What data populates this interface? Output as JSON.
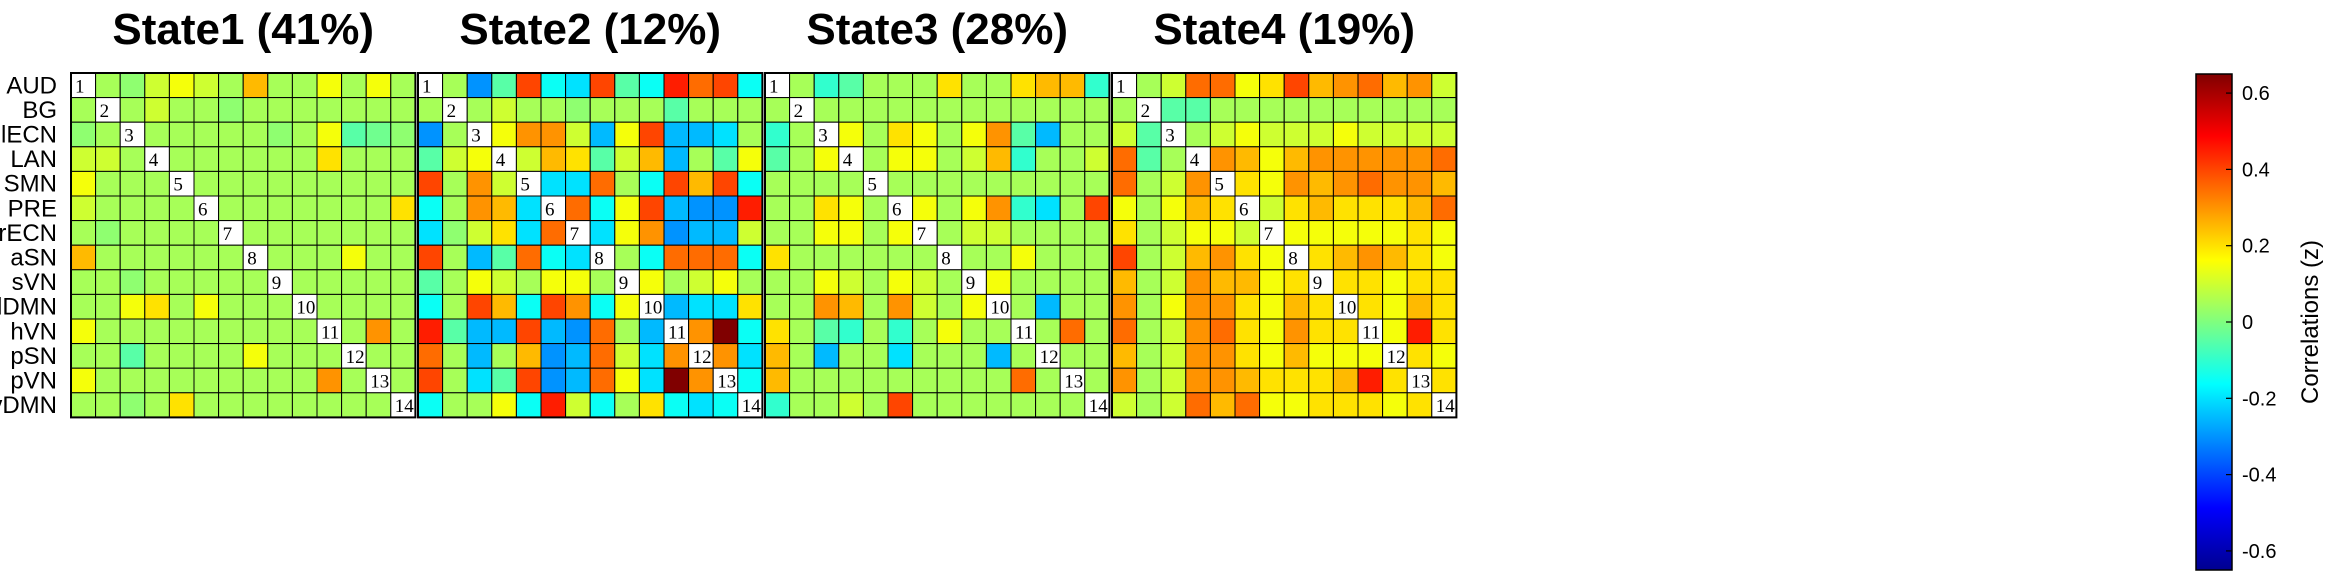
{
  "chart_data": {
    "type": "heatmap",
    "row_labels": [
      "AUD",
      "BG",
      "lECN",
      "LAN",
      "SMN",
      "PRE",
      "rECN",
      "aSN",
      "sVN",
      "dDMN",
      "hVN",
      "pSN",
      "pVN",
      "vDMN"
    ],
    "colorbar": {
      "label": "Correlations (z)",
      "range": [
        -0.65,
        0.65
      ],
      "ticks": [
        "0.6",
        "0.4",
        "0.2",
        "0",
        "-0.2",
        "-0.4",
        "-0.6"
      ],
      "tick_values": [
        0.6,
        0.4,
        0.2,
        0,
        -0.2,
        -0.4,
        -0.6
      ],
      "colormap": "jet"
    },
    "panels": [
      {
        "title": "State1 (41%)",
        "matrix": [
          [
            0,
            0.05,
            0.02,
            0.1,
            0.15,
            0.1,
            0.05,
            0.25,
            0.05,
            0.05,
            0.15,
            0.05,
            0.15,
            0.05
          ],
          [
            0.05,
            0,
            0.05,
            0.1,
            0.05,
            0.05,
            0.02,
            0.05,
            0.05,
            0.05,
            0.05,
            0.05,
            0.05,
            0.05
          ],
          [
            0.02,
            0.05,
            0,
            0.05,
            0.05,
            0.05,
            0.05,
            0.05,
            0.02,
            0.05,
            0.15,
            -0.05,
            -0.02,
            0.02
          ],
          [
            0.1,
            0.1,
            0.05,
            0,
            0.05,
            0.05,
            0.05,
            0.05,
            0.05,
            0.05,
            0.2,
            0.05,
            0.05,
            0.05
          ],
          [
            0.15,
            0.05,
            0.05,
            0.05,
            0,
            0.05,
            0.05,
            0.05,
            0.05,
            0.05,
            0.05,
            0.05,
            0.05,
            0.05
          ],
          [
            0.1,
            0.05,
            0.05,
            0.05,
            0.05,
            0,
            0.05,
            0.05,
            0.05,
            0.05,
            0.05,
            0.05,
            0.05,
            0.2
          ],
          [
            0.05,
            0.02,
            0.05,
            0.05,
            0.05,
            0.05,
            0,
            0.05,
            0.05,
            0.05,
            0.05,
            0.05,
            0.05,
            0.05
          ],
          [
            0.25,
            0.05,
            0.05,
            0.05,
            0.05,
            0.05,
            0.05,
            0,
            0.05,
            0.05,
            0.05,
            0.15,
            0.05,
            0.05
          ],
          [
            0.05,
            0.05,
            0.02,
            0.05,
            0.05,
            0.05,
            0.05,
            0.05,
            0,
            0.05,
            0.05,
            0.05,
            0.05,
            0.05
          ],
          [
            0.05,
            0.05,
            0.15,
            0.2,
            0.05,
            0.15,
            0.05,
            0.05,
            0.05,
            0,
            0.05,
            0.05,
            0.05,
            0.05
          ],
          [
            0.15,
            0.05,
            0.05,
            0.05,
            0.05,
            0.05,
            0.05,
            0.05,
            0.05,
            0.05,
            0,
            0.05,
            0.3,
            0.05
          ],
          [
            0.05,
            0.05,
            -0.05,
            0.05,
            0.05,
            0.05,
            0.05,
            0.15,
            0.05,
            0.05,
            0.05,
            0,
            0.05,
            0.05
          ],
          [
            0.15,
            0.05,
            0.05,
            0.05,
            0.05,
            0.05,
            0.05,
            0.05,
            0.05,
            0.05,
            0.3,
            0.05,
            0,
            0.05
          ],
          [
            0.05,
            0.05,
            0.02,
            0.05,
            0.2,
            0.05,
            0.05,
            0.05,
            0.05,
            0.05,
            0.05,
            0.05,
            0.05,
            0
          ]
        ]
      },
      {
        "title": "State2 (12%)",
        "matrix": [
          [
            0,
            0.05,
            -0.3,
            -0.05,
            0.4,
            -0.15,
            -0.2,
            0.4,
            -0.05,
            -0.15,
            0.45,
            0.35,
            0.4,
            -0.15
          ],
          [
            0.05,
            0,
            0.05,
            0.1,
            0.05,
            0.05,
            0.02,
            0.05,
            0.05,
            0.05,
            -0.05,
            0.05,
            0.05,
            0.05
          ],
          [
            -0.3,
            0.05,
            0,
            0.15,
            0.3,
            0.3,
            0.1,
            -0.25,
            0.15,
            0.4,
            -0.25,
            -0.25,
            -0.2,
            0.05
          ],
          [
            -0.05,
            0.1,
            0.15,
            0,
            0.1,
            0.25,
            0.2,
            -0.05,
            0.1,
            0.25,
            -0.25,
            0.05,
            -0.05,
            0.15
          ],
          [
            0.4,
            0.05,
            0.3,
            0.1,
            0,
            -0.2,
            -0.2,
            0.35,
            0.05,
            -0.15,
            0.4,
            0.25,
            0.4,
            -0.15
          ],
          [
            -0.15,
            0.05,
            0.3,
            0.25,
            -0.2,
            0,
            0.35,
            -0.15,
            0.15,
            0.4,
            -0.25,
            -0.3,
            -0.3,
            0.45
          ],
          [
            -0.2,
            0.02,
            0.1,
            0.2,
            -0.2,
            0.35,
            0,
            -0.2,
            0.15,
            0.3,
            -0.3,
            -0.25,
            -0.25,
            0.1
          ],
          [
            0.4,
            0.05,
            -0.25,
            -0.05,
            0.35,
            -0.15,
            -0.2,
            0,
            0.05,
            -0.15,
            0.35,
            0.35,
            0.35,
            -0.15
          ],
          [
            -0.05,
            0.05,
            0.15,
            0.1,
            0.05,
            0.15,
            0.15,
            0.05,
            0,
            0.15,
            0.05,
            0.1,
            0.15,
            0.05
          ],
          [
            -0.15,
            0.05,
            0.4,
            0.25,
            -0.15,
            0.4,
            0.3,
            -0.15,
            0.15,
            0,
            -0.25,
            -0.2,
            -0.2,
            0.2
          ],
          [
            0.45,
            -0.05,
            -0.25,
            -0.25,
            0.4,
            -0.25,
            -0.3,
            0.35,
            0.05,
            -0.25,
            0,
            0.3,
            0.65,
            -0.15
          ],
          [
            0.35,
            0.05,
            -0.25,
            0.05,
            0.25,
            -0.3,
            -0.25,
            0.35,
            0.1,
            -0.2,
            0.3,
            0,
            0.3,
            -0.2
          ],
          [
            0.4,
            0.05,
            -0.2,
            -0.05,
            0.4,
            -0.3,
            -0.25,
            0.35,
            0.15,
            -0.2,
            0.65,
            0.3,
            0,
            -0.15
          ],
          [
            -0.15,
            0.05,
            0.05,
            0.15,
            -0.15,
            0.45,
            0.1,
            -0.15,
            0.05,
            0.2,
            -0.15,
            -0.2,
            -0.15,
            0
          ]
        ]
      },
      {
        "title": "State3 (28%)",
        "matrix": [
          [
            0,
            0.05,
            -0.1,
            -0.05,
            0.05,
            0.05,
            0.05,
            0.2,
            0.05,
            0.05,
            0.2,
            0.25,
            0.25,
            -0.1
          ],
          [
            0.05,
            0,
            0.05,
            0.05,
            0.05,
            0.05,
            0.05,
            0.05,
            0.05,
            0.05,
            0.05,
            0.05,
            0.05,
            0.05
          ],
          [
            -0.1,
            0.05,
            0,
            0.15,
            0.05,
            0.2,
            0.15,
            0.05,
            0.15,
            0.3,
            -0.05,
            -0.25,
            0.05,
            0.05
          ],
          [
            -0.05,
            0.05,
            0.15,
            0,
            0.05,
            0.15,
            0.15,
            0.05,
            0.1,
            0.25,
            -0.1,
            0.05,
            0.05,
            0.1
          ],
          [
            0.05,
            0.05,
            0.05,
            0.05,
            0,
            0.05,
            0.05,
            0.05,
            0.05,
            0.05,
            0.05,
            0.05,
            0.05,
            0.05
          ],
          [
            0.05,
            0.05,
            0.2,
            0.15,
            0.05,
            0,
            0.15,
            0.05,
            0.15,
            0.3,
            -0.1,
            -0.2,
            0.05,
            0.4
          ],
          [
            0.05,
            0.05,
            0.15,
            0.15,
            0.05,
            0.15,
            0,
            0.05,
            0.1,
            0.1,
            0.05,
            0.05,
            0.05,
            0.05
          ],
          [
            0.2,
            0.05,
            0.05,
            0.05,
            0.05,
            0.05,
            0.05,
            0,
            0.05,
            0.05,
            0.15,
            0.05,
            0.05,
            0.05
          ],
          [
            0.05,
            0.05,
            0.15,
            0.1,
            0.05,
            0.15,
            0.1,
            0.05,
            0,
            0.15,
            0.05,
            0.05,
            0.05,
            0.05
          ],
          [
            0.05,
            0.05,
            0.3,
            0.25,
            0.05,
            0.3,
            0.1,
            0.05,
            0.15,
            0,
            0.05,
            -0.25,
            0.05,
            0.05
          ],
          [
            0.2,
            0.05,
            -0.05,
            -0.1,
            0.05,
            -0.1,
            0.05,
            0.15,
            0.05,
            0.05,
            0,
            0.05,
            0.35,
            0.05
          ],
          [
            0.25,
            0.05,
            -0.25,
            0.05,
            0.05,
            -0.2,
            0.05,
            0.05,
            0.05,
            -0.25,
            0.05,
            0,
            0.05,
            0.05
          ],
          [
            0.25,
            0.05,
            0.05,
            0.05,
            0.05,
            0.05,
            0.05,
            0.05,
            0.05,
            0.05,
            0.35,
            0.05,
            0,
            0.05
          ],
          [
            -0.1,
            0.05,
            0.05,
            0.1,
            0.05,
            0.4,
            0.05,
            0.05,
            0.05,
            0.05,
            0.05,
            0.05,
            0.05,
            0
          ]
        ]
      },
      {
        "title": "State4 (19%)",
        "matrix": [
          [
            0,
            0.05,
            0.1,
            0.35,
            0.35,
            0.15,
            0.2,
            0.4,
            0.25,
            0.3,
            0.35,
            0.25,
            0.3,
            0.1
          ],
          [
            0.05,
            0,
            -0.05,
            -0.05,
            0.05,
            0.05,
            0.05,
            0.05,
            0.05,
            0.05,
            0.05,
            0.05,
            0.05,
            0.05
          ],
          [
            0.1,
            -0.05,
            0,
            0.05,
            0.1,
            0.15,
            0.1,
            0.1,
            0.1,
            0.15,
            0.1,
            0.1,
            0.1,
            0.1
          ],
          [
            0.35,
            -0.05,
            0.05,
            0,
            0.3,
            0.25,
            0.15,
            0.25,
            0.3,
            0.3,
            0.3,
            0.3,
            0.3,
            0.35
          ],
          [
            0.35,
            0.05,
            0.1,
            0.3,
            0,
            0.2,
            0.15,
            0.3,
            0.25,
            0.3,
            0.35,
            0.3,
            0.3,
            0.25
          ],
          [
            0.15,
            0.05,
            0.15,
            0.25,
            0.2,
            0,
            0.1,
            0.2,
            0.25,
            0.2,
            0.2,
            0.2,
            0.25,
            0.35
          ],
          [
            0.2,
            0.05,
            0.1,
            0.15,
            0.15,
            0.1,
            0,
            0.15,
            0.15,
            0.15,
            0.15,
            0.15,
            0.2,
            0.15
          ],
          [
            0.4,
            0.05,
            0.1,
            0.25,
            0.3,
            0.2,
            0.15,
            0,
            0.2,
            0.25,
            0.3,
            0.25,
            0.2,
            0.15
          ],
          [
            0.25,
            0.05,
            0.1,
            0.3,
            0.25,
            0.25,
            0.15,
            0.2,
            0,
            0.2,
            0.2,
            0.15,
            0.2,
            0.2
          ],
          [
            0.3,
            0.05,
            0.15,
            0.3,
            0.3,
            0.2,
            0.15,
            0.25,
            0.2,
            0,
            0.2,
            0.15,
            0.25,
            0.2
          ],
          [
            0.35,
            0.05,
            0.1,
            0.3,
            0.35,
            0.2,
            0.15,
            0.3,
            0.2,
            0.2,
            0,
            0.15,
            0.45,
            0.2
          ],
          [
            0.25,
            0.05,
            0.1,
            0.3,
            0.3,
            0.2,
            0.15,
            0.25,
            0.15,
            0.15,
            0.15,
            0,
            0.2,
            0.15
          ],
          [
            0.3,
            0.05,
            0.1,
            0.3,
            0.3,
            0.25,
            0.2,
            0.2,
            0.2,
            0.25,
            0.45,
            0.2,
            0,
            0.2
          ],
          [
            0.1,
            0.05,
            0.1,
            0.35,
            0.25,
            0.35,
            0.15,
            0.15,
            0.2,
            0.2,
            0.2,
            0.15,
            0.2,
            0
          ]
        ]
      }
    ]
  }
}
